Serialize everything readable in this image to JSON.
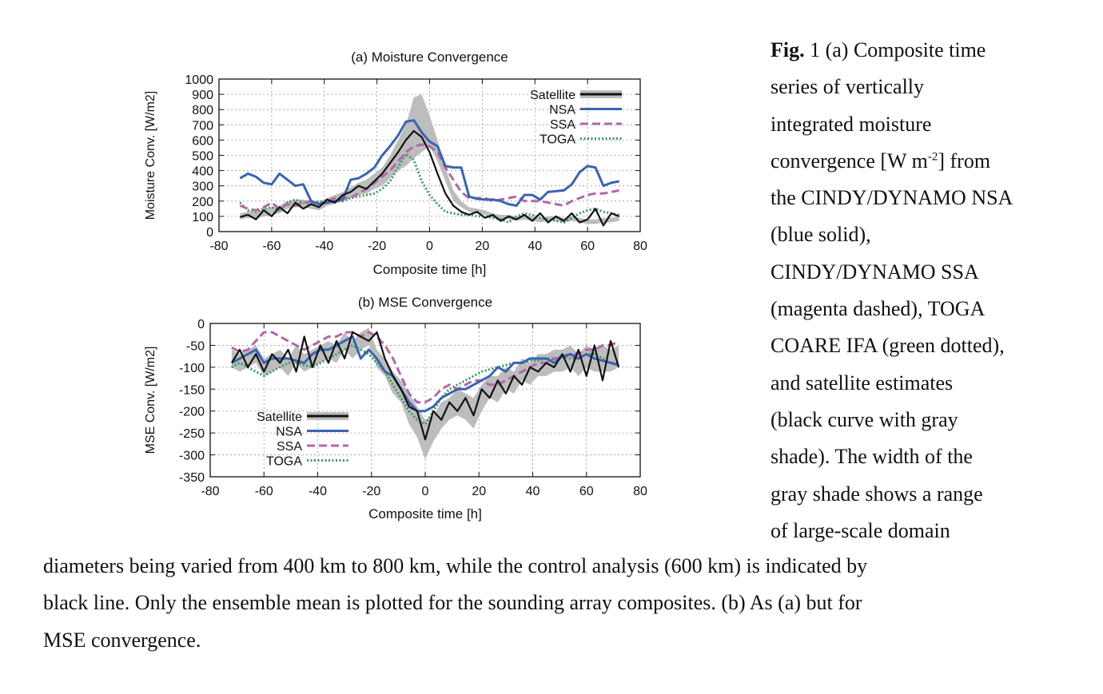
{
  "chart_data": [
    {
      "type": "line",
      "title": "(a) Moisture Convergence",
      "xlabel": "Composite time [h]",
      "ylabel": "Moisture Conv. [W/m2]",
      "xlim": [
        -80,
        80
      ],
      "ylim": [
        0,
        1000
      ],
      "xticks": [
        "-80",
        "-60",
        "-40",
        "-20",
        "0",
        "20",
        "40",
        "60",
        "80"
      ],
      "yticks": [
        "0",
        "100",
        "200",
        "300",
        "400",
        "500",
        "600",
        "700",
        "800",
        "900",
        "1000"
      ],
      "grid": true,
      "legend_position": "top-right",
      "x": [
        -72,
        -69,
        -66,
        -63,
        -60,
        -57,
        -54,
        -51,
        -48,
        -45,
        -42,
        -39,
        -36,
        -33,
        -30,
        -27,
        -24,
        -21,
        -18,
        -15,
        -12,
        -9,
        -6,
        -3,
        0,
        3,
        6,
        9,
        12,
        15,
        18,
        21,
        24,
        27,
        30,
        33,
        36,
        39,
        42,
        45,
        48,
        51,
        54,
        57,
        60,
        63,
        66,
        69,
        72
      ],
      "shade": {
        "lower": [
          80,
          90,
          85,
          100,
          110,
          120,
          150,
          160,
          160,
          150,
          140,
          170,
          180,
          200,
          220,
          240,
          250,
          280,
          300,
          350,
          400,
          430,
          480,
          520,
          560,
          460,
          330,
          200,
          160,
          130,
          120,
          110,
          90,
          80,
          80,
          70,
          80,
          70,
          60,
          70,
          70,
          60,
          70,
          60,
          50,
          50,
          60,
          60,
          70
        ],
        "upper": [
          120,
          130,
          130,
          150,
          160,
          170,
          200,
          210,
          210,
          200,
          190,
          220,
          240,
          260,
          290,
          320,
          340,
          380,
          420,
          500,
          600,
          700,
          880,
          900,
          760,
          600,
          420,
          270,
          200,
          160,
          150,
          140,
          120,
          110,
          110,
          100,
          110,
          100,
          90,
          100,
          100,
          90,
          100,
          90,
          80,
          80,
          90,
          90,
          100
        ]
      },
      "series": [
        {
          "name": "Satellite",
          "color": "#111111",
          "style": "solid",
          "values": [
            95,
            110,
            80,
            140,
            100,
            160,
            120,
            190,
            150,
            180,
            160,
            210,
            190,
            240,
            260,
            300,
            280,
            330,
            380,
            450,
            520,
            600,
            660,
            620,
            520,
            380,
            250,
            170,
            130,
            110,
            130,
            90,
            110,
            70,
            100,
            80,
            110,
            70,
            120,
            60,
            100,
            70,
            120,
            60,
            80,
            150,
            40,
            120,
            100
          ]
        },
        {
          "name": "NSA",
          "color": "#3a64b0",
          "style": "solid",
          "values": [
            350,
            380,
            360,
            320,
            310,
            380,
            340,
            300,
            310,
            200,
            180,
            190,
            200,
            210,
            340,
            350,
            380,
            420,
            500,
            560,
            630,
            720,
            730,
            650,
            590,
            560,
            430,
            420,
            420,
            230,
            215,
            210,
            210,
            200,
            180,
            170,
            240,
            240,
            210,
            260,
            265,
            270,
            310,
            390,
            430,
            420,
            300,
            320,
            330
          ]
        },
        {
          "name": "SSA",
          "color": "#b267a8",
          "style": "dashed",
          "values": [
            170,
            150,
            140,
            160,
            190,
            150,
            180,
            170,
            190,
            200,
            180,
            200,
            220,
            220,
            220,
            250,
            280,
            320,
            360,
            400,
            460,
            520,
            560,
            570,
            560,
            520,
            420,
            340,
            260,
            220,
            220,
            220,
            200,
            210,
            220,
            230,
            200,
            200,
            200,
            190,
            180,
            170,
            200,
            220,
            240,
            250,
            250,
            260,
            270
          ]
        },
        {
          "name": "TOGA",
          "color": "#3a9a5c",
          "style": "dotted",
          "values": [
            190,
            140,
            130,
            150,
            160,
            140,
            190,
            210,
            190,
            180,
            200,
            190,
            200,
            200,
            220,
            230,
            240,
            250,
            280,
            330,
            420,
            510,
            470,
            330,
            240,
            180,
            130,
            120,
            110,
            110,
            100,
            100,
            90,
            80,
            60,
            100,
            120,
            110,
            90,
            80,
            70,
            60,
            90,
            120,
            140,
            150,
            130,
            120,
            110
          ]
        }
      ]
    },
    {
      "type": "line",
      "title": "(b) MSE Convergence",
      "xlabel": "Composite time [h]",
      "ylabel": "MSE Conv. [W/m2]",
      "xlim": [
        -80,
        80
      ],
      "ylim": [
        -350,
        0
      ],
      "xticks": [
        "-80",
        "-60",
        "-40",
        "-20",
        "0",
        "20",
        "40",
        "60",
        "80"
      ],
      "yticks": [
        "0",
        "-50",
        "-100",
        "-150",
        "-200",
        "-250",
        "-300",
        "-350"
      ],
      "grid": true,
      "legend_position": "bottom-left",
      "x": [
        -72,
        -69,
        -66,
        -63,
        -60,
        -57,
        -54,
        -51,
        -48,
        -45,
        -42,
        -39,
        -36,
        -33,
        -30,
        -27,
        -24,
        -21,
        -18,
        -15,
        -12,
        -9,
        -6,
        -3,
        0,
        3,
        6,
        9,
        12,
        15,
        18,
        21,
        24,
        27,
        30,
        33,
        36,
        39,
        42,
        45,
        48,
        51,
        54,
        57,
        60,
        63,
        66,
        69,
        72
      ],
      "shade": {
        "lower": [
          -100,
          -110,
          -100,
          -90,
          -120,
          -110,
          -100,
          -120,
          -90,
          -110,
          -100,
          -90,
          -80,
          -90,
          -60,
          -80,
          -60,
          -50,
          -100,
          -120,
          -160,
          -180,
          -230,
          -260,
          -310,
          -270,
          -240,
          -220,
          -210,
          -220,
          -240,
          -200,
          -170,
          -180,
          -150,
          -160,
          -130,
          -140,
          -120,
          -120,
          -110,
          -110,
          -100,
          -120,
          -100,
          -110,
          -110,
          -110,
          -100
        ],
        "upper": [
          -60,
          -70,
          -60,
          -50,
          -80,
          -70,
          -60,
          -80,
          -50,
          -70,
          -60,
          -50,
          -40,
          -50,
          -20,
          -40,
          -20,
          -10,
          -60,
          -80,
          -110,
          -130,
          -160,
          -190,
          -220,
          -210,
          -180,
          -170,
          -150,
          -160,
          -170,
          -140,
          -120,
          -120,
          -100,
          -110,
          -80,
          -90,
          -70,
          -70,
          -60,
          -60,
          -50,
          -70,
          -50,
          -60,
          -50,
          -60,
          -50
        ]
      },
      "series": [
        {
          "name": "Satellite",
          "color": "#111111",
          "style": "solid",
          "values": [
            -90,
            -60,
            -100,
            -70,
            -110,
            -70,
            -90,
            -60,
            -110,
            -30,
            -100,
            -50,
            -90,
            -40,
            -80,
            -20,
            -30,
            -40,
            -20,
            -80,
            -120,
            -150,
            -190,
            -200,
            -265,
            -200,
            -220,
            -180,
            -200,
            -170,
            -210,
            -150,
            -170,
            -130,
            -160,
            -120,
            -140,
            -100,
            -110,
            -90,
            -100,
            -70,
            -110,
            -60,
            -120,
            -50,
            -130,
            -40,
            -100
          ]
        },
        {
          "name": "NSA",
          "color": "#3a64b0",
          "style": "solid",
          "values": [
            -90,
            -80,
            -70,
            -60,
            -90,
            -80,
            -80,
            -80,
            -85,
            -90,
            -70,
            -60,
            -60,
            -50,
            -40,
            -30,
            -80,
            -60,
            -80,
            -110,
            -120,
            -150,
            -180,
            -200,
            -200,
            -190,
            -170,
            -160,
            -150,
            -150,
            -140,
            -130,
            -120,
            -100,
            -110,
            -90,
            -90,
            -80,
            -80,
            -80,
            -90,
            -75,
            -70,
            -80,
            -70,
            -80,
            -85,
            -90,
            -95
          ]
        },
        {
          "name": "SSA",
          "color": "#b267a8",
          "style": "dashed",
          "values": [
            -55,
            -65,
            -60,
            -40,
            -20,
            -20,
            -30,
            -40,
            -50,
            -60,
            -50,
            -40,
            -30,
            -30,
            -20,
            -20,
            -30,
            -20,
            -30,
            -50,
            -80,
            -120,
            -160,
            -180,
            -180,
            -170,
            -150,
            -140,
            -150,
            -140,
            -130,
            -130,
            -140,
            -140,
            -130,
            -120,
            -110,
            -100,
            -90,
            -90,
            -80,
            -80,
            -70,
            -70,
            -60,
            -60,
            -50,
            -50,
            -40
          ]
        },
        {
          "name": "TOGA",
          "color": "#3a9a5c",
          "style": "dotted",
          "values": [
            -100,
            -90,
            -100,
            -110,
            -120,
            -110,
            -100,
            -90,
            -90,
            -95,
            -100,
            -90,
            -80,
            -70,
            -60,
            -50,
            -60,
            -70,
            -90,
            -110,
            -140,
            -170,
            -200,
            -220,
            -230,
            -200,
            -170,
            -150,
            -140,
            -130,
            -120,
            -110,
            -105,
            -100,
            -95,
            -90,
            -90,
            -85,
            -85,
            -80,
            -80,
            -75,
            -80,
            -80,
            -70,
            -70,
            -80,
            -90,
            -90
          ]
        }
      ]
    }
  ],
  "caption": {
    "fig_prefix": "Fig.",
    "column_lines": [
      " 1 (a) Composite time",
      "series of vertically",
      "integrated moisture",
      "convergence [W m",
      "the CINDY/DYNAMO NSA",
      "(blue solid),",
      "CINDY/DYNAMO SSA",
      "(magenta dashed), TOGA",
      "COARE IFA (green dotted),",
      "and satellite estimates",
      "(black curve with gray",
      "shade). The width of the",
      "gray shade shows a range",
      "of large-scale domain"
    ],
    "units_sup": "-2",
    "units_tail": "] from",
    "full_lines": [
      "diameters being varied from 400 km to 800 km, while the control analysis (600 km) is indicated by",
      "black line. Only the ensemble mean is plotted for the sounding array composites. (b) As (a) but for",
      "MSE convergence."
    ]
  }
}
